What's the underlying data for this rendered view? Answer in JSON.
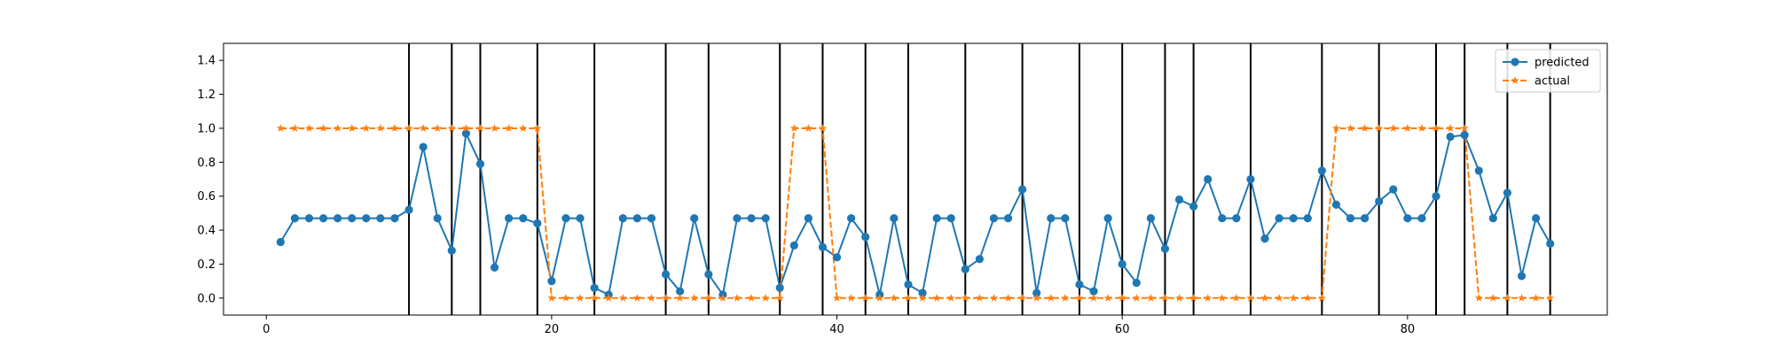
{
  "chart_data": {
    "type": "line",
    "title": "",
    "xlabel": "",
    "ylabel": "",
    "xlim": [
      -3,
      94
    ],
    "ylim": [
      -0.1,
      1.5
    ],
    "xticks": [
      0,
      20,
      40,
      60,
      80
    ],
    "yticks": [
      0.0,
      0.2,
      0.4,
      0.6,
      0.8,
      1.0,
      1.2,
      1.4
    ],
    "xtick_labels": [
      "0",
      "20",
      "40",
      "60",
      "80"
    ],
    "ytick_labels": [
      "0.0",
      "0.2",
      "0.4",
      "0.6",
      "0.8",
      "1.0",
      "1.2",
      "1.4"
    ],
    "grid": false,
    "legend_position": "top-right",
    "vertical_lines": [
      10,
      13,
      15,
      19,
      23,
      28,
      31,
      36,
      39,
      42,
      45,
      49,
      53,
      57,
      60,
      63,
      65,
      69,
      74,
      78,
      82,
      84,
      87,
      90
    ],
    "series": [
      {
        "name": "predicted",
        "color": "#1f77b4",
        "marker": "circle",
        "linestyle": "solid",
        "x": [
          1,
          2,
          3,
          4,
          5,
          6,
          7,
          8,
          9,
          10,
          11,
          12,
          13,
          14,
          15,
          16,
          17,
          18,
          19,
          20,
          21,
          22,
          23,
          24,
          25,
          26,
          27,
          28,
          29,
          30,
          31,
          32,
          33,
          34,
          35,
          36,
          37,
          38,
          39,
          40,
          41,
          42,
          43,
          44,
          45,
          46,
          47,
          48,
          49,
          50,
          51,
          52,
          53,
          54,
          55,
          56,
          57,
          58,
          59,
          60,
          61,
          62,
          63,
          64,
          65,
          66,
          67,
          68,
          69,
          70,
          71,
          72,
          73,
          74,
          75,
          76,
          77,
          78,
          79,
          80,
          81,
          82,
          83,
          84,
          85,
          86,
          87,
          88,
          89,
          90
        ],
        "values": [
          0.33,
          0.47,
          0.47,
          0.47,
          0.47,
          0.47,
          0.47,
          0.47,
          0.47,
          0.52,
          0.89,
          0.47,
          0.28,
          0.97,
          0.79,
          0.18,
          0.47,
          0.47,
          0.44,
          0.1,
          0.47,
          0.47,
          0.06,
          0.02,
          0.47,
          0.47,
          0.47,
          0.14,
          0.04,
          0.47,
          0.14,
          0.02,
          0.47,
          0.47,
          0.47,
          0.06,
          0.31,
          0.47,
          0.3,
          0.24,
          0.47,
          0.36,
          0.02,
          0.47,
          0.08,
          0.03,
          0.47,
          0.47,
          0.17,
          0.23,
          0.47,
          0.47,
          0.64,
          0.03,
          0.47,
          0.47,
          0.08,
          0.04,
          0.47,
          0.2,
          0.09,
          0.47,
          0.29,
          0.58,
          0.54,
          0.7,
          0.47,
          0.47,
          0.7,
          0.35,
          0.47,
          0.47,
          0.47,
          0.75,
          0.55,
          0.47,
          0.47,
          0.57,
          0.64,
          0.47,
          0.47,
          0.6,
          0.95,
          0.96,
          0.75,
          0.47,
          0.62,
          0.13,
          0.47,
          0.32
        ]
      },
      {
        "name": "actual",
        "color": "#ff7f0e",
        "marker": "star",
        "linestyle": "dashed",
        "x": [
          1,
          2,
          3,
          4,
          5,
          6,
          7,
          8,
          9,
          10,
          11,
          12,
          13,
          14,
          15,
          16,
          17,
          18,
          19,
          20,
          21,
          22,
          23,
          24,
          25,
          26,
          27,
          28,
          29,
          30,
          31,
          32,
          33,
          34,
          35,
          36,
          37,
          38,
          39,
          40,
          41,
          42,
          43,
          44,
          45,
          46,
          47,
          48,
          49,
          50,
          51,
          52,
          53,
          54,
          55,
          56,
          57,
          58,
          59,
          60,
          61,
          62,
          63,
          64,
          65,
          66,
          67,
          68,
          69,
          70,
          71,
          72,
          73,
          74,
          75,
          76,
          77,
          78,
          79,
          80,
          81,
          82,
          83,
          84,
          85,
          86,
          87,
          88,
          89,
          90
        ],
        "values": [
          1,
          1,
          1,
          1,
          1,
          1,
          1,
          1,
          1,
          1,
          1,
          1,
          1,
          1,
          1,
          1,
          1,
          1,
          1,
          0,
          0,
          0,
          0,
          0,
          0,
          0,
          0,
          0,
          0,
          0,
          0,
          0,
          0,
          0,
          0,
          0,
          1,
          1,
          1,
          0,
          0,
          0,
          0,
          0,
          0,
          0,
          0,
          0,
          0,
          0,
          0,
          0,
          0,
          0,
          0,
          0,
          0,
          0,
          0,
          0,
          0,
          0,
          0,
          0,
          0,
          0,
          0,
          0,
          0,
          0,
          0,
          0,
          0,
          0,
          1,
          1,
          1,
          1,
          1,
          1,
          1,
          1,
          1,
          1,
          0,
          0,
          0,
          0,
          0,
          0
        ]
      }
    ]
  }
}
